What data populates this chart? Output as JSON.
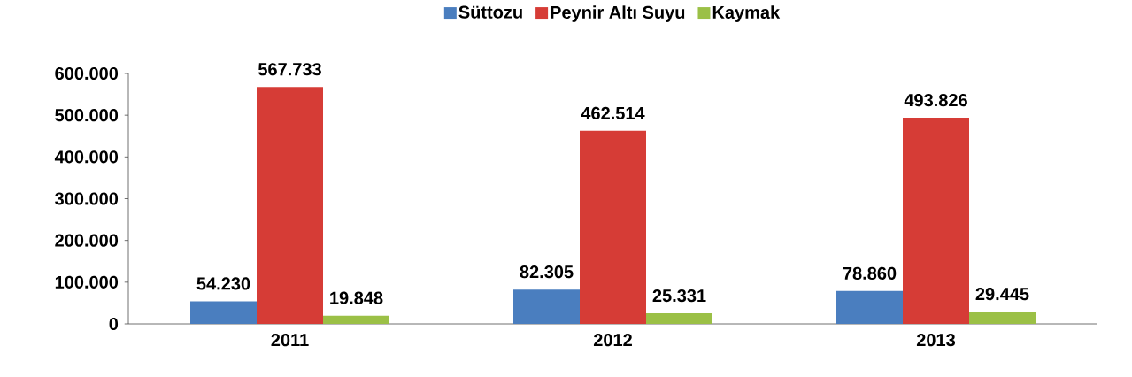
{
  "chart_data": {
    "type": "bar",
    "categories": [
      "2011",
      "2012",
      "2013"
    ],
    "series": [
      {
        "name": "Süttozu",
        "color": "#4a7ebf",
        "values": [
          54230,
          82305,
          78860
        ],
        "value_labels": [
          "54.230",
          "82.305",
          "78.860"
        ]
      },
      {
        "name": "Peynir Altı Suyu",
        "color": "#d63c36",
        "values": [
          567733,
          462514,
          493826
        ],
        "value_labels": [
          "567.733",
          "462.514",
          "493.826"
        ]
      },
      {
        "name": "Kaymak",
        "color": "#9bc046",
        "values": [
          19848,
          25331,
          29445
        ],
        "value_labels": [
          "19.848",
          "25.331",
          "29.445"
        ]
      }
    ],
    "ylim": [
      0,
      600000
    ],
    "yticks": [
      {
        "value": 0,
        "label": "0"
      },
      {
        "value": 100000,
        "label": "100.000"
      },
      {
        "value": 200000,
        "label": "200.000"
      },
      {
        "value": 300000,
        "label": "300.000"
      },
      {
        "value": 400000,
        "label": "400.000"
      },
      {
        "value": 500000,
        "label": "500.000"
      },
      {
        "value": 600000,
        "label": "600.000"
      }
    ],
    "grid": false,
    "legend": "top"
  }
}
